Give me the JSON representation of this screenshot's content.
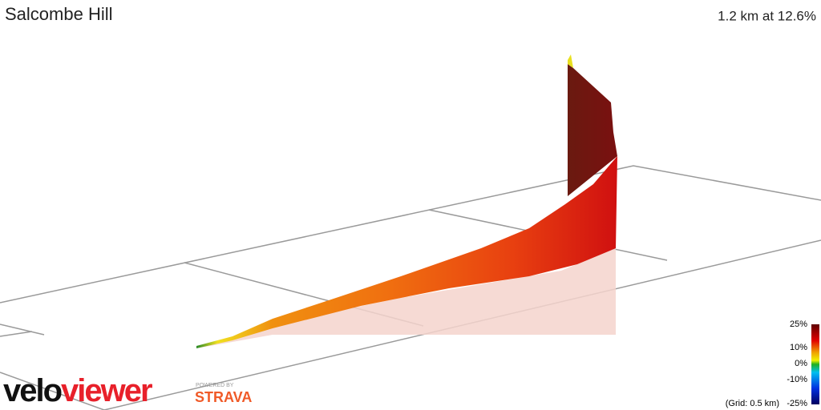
{
  "header": {
    "title": "Salcombe Hill",
    "summary": "1.2 km at 12.6%"
  },
  "legend": {
    "labels": [
      "25%",
      "10%",
      "0%",
      "-10%",
      "-25%"
    ],
    "grid_note": "(Grid: 0.5 km)"
  },
  "branding": {
    "logo_part1": "velo",
    "logo_part2": "viewer",
    "powered_by": "POWERED BY",
    "partner": "STRAVA"
  }
}
